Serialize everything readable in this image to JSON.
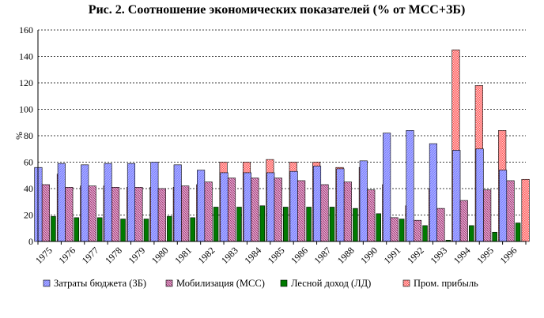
{
  "chart_data": {
    "type": "bar",
    "title": "Рис. 2. Соотношение экономических показателей (% от МСС+ЗБ)",
    "ylabel": "%",
    "xlabel": "",
    "ylim": [
      0,
      160
    ],
    "yticks": [
      0,
      20,
      40,
      60,
      80,
      100,
      120,
      140,
      160
    ],
    "grid": true,
    "legend_position": "bottom",
    "categories": [
      "1975",
      "1976",
      "1977",
      "1978",
      "1979",
      "1980",
      "1981",
      "1982",
      "1983",
      "1984",
      "1985",
      "1986",
      "1987",
      "1988",
      "1990",
      "1991",
      "1992",
      "1993",
      "1994",
      "1995",
      "1996"
    ],
    "series": [
      {
        "name": "Затраты бюджета (ЗБ)",
        "color": "#9999ff",
        "pattern": "hatch-blue",
        "values": [
          56,
          59,
          58,
          59,
          59,
          60,
          58,
          54,
          52,
          52,
          52,
          53,
          57,
          55,
          61,
          82,
          84,
          74,
          69,
          70,
          54
        ]
      },
      {
        "name": "Мобилизация (МСС)",
        "color": "#993366",
        "pattern": "hatch-purple",
        "values": [
          43,
          41,
          42,
          41,
          41,
          40,
          42,
          45,
          48,
          48,
          48,
          46,
          43,
          45,
          39,
          18,
          16,
          25,
          31,
          39,
          46
        ]
      },
      {
        "name": "Лесной доход (ЛД)",
        "color": "#008000",
        "pattern": "solid-green",
        "values": [
          19,
          18,
          18,
          17,
          17,
          19,
          18,
          26,
          26,
          27,
          26,
          26,
          26,
          25,
          21,
          17,
          12,
          1,
          12,
          7,
          14
        ]
      },
      {
        "name": "Пром. прибыль",
        "color": "#ff6666",
        "pattern": "check-red",
        "values": [
          51,
          42,
          42,
          41,
          41,
          41,
          43,
          60,
          60,
          62,
          60,
          60,
          56,
          56,
          43,
          27,
          40,
          145,
          118,
          84,
          47
        ]
      }
    ]
  }
}
